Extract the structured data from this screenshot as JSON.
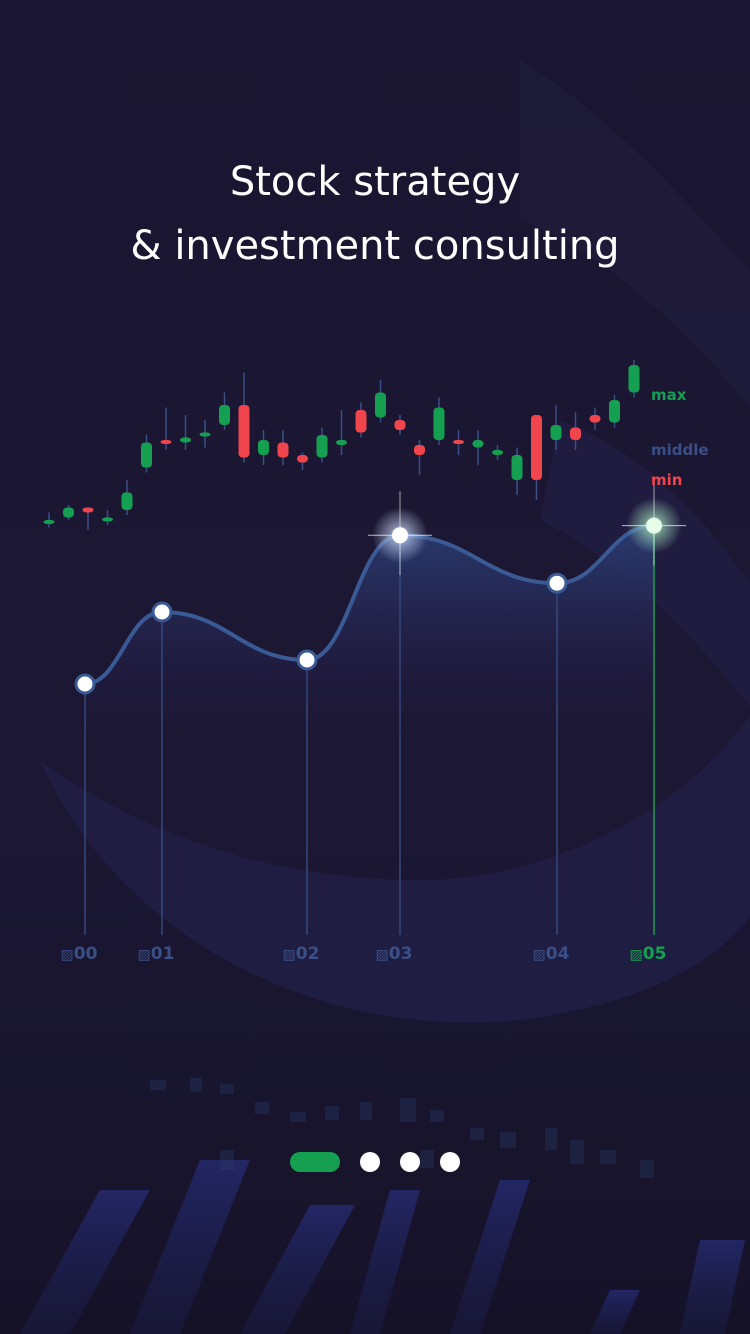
{
  "title": {
    "line1": "Stock strategy",
    "line2": "& investment consulting"
  },
  "colors": {
    "background": "#1b1630",
    "up": "#14a050",
    "down": "#f0454d",
    "line": "#3a5a96",
    "accent_green": "#14a050",
    "label_blue": "#3b4f87"
  },
  "legend": {
    "max": "max",
    "middle": "middle",
    "min": "min"
  },
  "chart_data": {
    "type": "line",
    "x": [
      "00",
      "01",
      "02",
      "03",
      "04",
      "05"
    ],
    "values": [
      2.0,
      3.5,
      2.5,
      5.1,
      4.1,
      5.3
    ],
    "highlighted": "05",
    "candlesticks": [
      {
        "dir": "flat",
        "o": 6.4,
        "c": 6.4,
        "h": 6.7,
        "l": 6.1
      },
      {
        "dir": "up",
        "o": 6.5,
        "c": 6.9,
        "h": 7.0,
        "l": 6.4
      },
      {
        "dir": "down",
        "o": 6.9,
        "c": 6.7,
        "h": 6.9,
        "l": 6.0
      },
      {
        "dir": "flat",
        "o": 6.5,
        "c": 6.5,
        "h": 6.8,
        "l": 6.2
      },
      {
        "dir": "up",
        "o": 6.8,
        "c": 7.5,
        "h": 8.0,
        "l": 6.6
      },
      {
        "dir": "up",
        "o": 8.5,
        "c": 9.5,
        "h": 9.8,
        "l": 8.3
      },
      {
        "dir": "down",
        "o": 9.6,
        "c": 9.5,
        "h": 10.9,
        "l": 9.2
      },
      {
        "dir": "up",
        "o": 9.5,
        "c": 9.7,
        "h": 10.6,
        "l": 9.2
      },
      {
        "dir": "up",
        "o": 9.8,
        "c": 9.9,
        "h": 10.4,
        "l": 9.3
      },
      {
        "dir": "up",
        "o": 10.2,
        "c": 11.0,
        "h": 11.5,
        "l": 10.0
      },
      {
        "dir": "down",
        "o": 11.0,
        "c": 8.9,
        "h": 12.3,
        "l": 8.7
      },
      {
        "dir": "up",
        "o": 9.0,
        "c": 9.6,
        "h": 10.0,
        "l": 8.6
      },
      {
        "dir": "down",
        "o": 9.5,
        "c": 8.9,
        "h": 10.0,
        "l": 8.6
      },
      {
        "dir": "down",
        "o": 9.0,
        "c": 8.7,
        "h": 9.1,
        "l": 8.4
      },
      {
        "dir": "up",
        "o": 8.9,
        "c": 9.8,
        "h": 10.1,
        "l": 8.7
      },
      {
        "dir": "up",
        "o": 9.4,
        "c": 9.6,
        "h": 10.8,
        "l": 9.0
      },
      {
        "dir": "down",
        "o": 10.8,
        "c": 9.9,
        "h": 11.1,
        "l": 9.7
      },
      {
        "dir": "up",
        "o": 10.5,
        "c": 11.5,
        "h": 12.0,
        "l": 10.3
      },
      {
        "dir": "down",
        "o": 10.4,
        "c": 10.0,
        "h": 10.6,
        "l": 9.8
      },
      {
        "dir": "down",
        "o": 9.4,
        "c": 9.0,
        "h": 9.6,
        "l": 8.2
      },
      {
        "dir": "up",
        "o": 9.6,
        "c": 10.9,
        "h": 11.3,
        "l": 9.4
      },
      {
        "dir": "down",
        "o": 9.6,
        "c": 9.5,
        "h": 10.0,
        "l": 9.0
      },
      {
        "dir": "up",
        "o": 9.3,
        "c": 9.6,
        "h": 10.0,
        "l": 8.6
      },
      {
        "dir": "up",
        "o": 9.0,
        "c": 9.2,
        "h": 9.4,
        "l": 8.8
      },
      {
        "dir": "up",
        "o": 8.0,
        "c": 9.0,
        "h": 9.3,
        "l": 7.4
      },
      {
        "dir": "down",
        "o": 10.6,
        "c": 8.0,
        "h": 10.6,
        "l": 7.2
      },
      {
        "dir": "up",
        "o": 9.6,
        "c": 10.2,
        "h": 11.0,
        "l": 9.2
      },
      {
        "dir": "down",
        "o": 10.1,
        "c": 9.6,
        "h": 10.7,
        "l": 9.2
      },
      {
        "dir": "down",
        "o": 10.6,
        "c": 10.3,
        "h": 10.9,
        "l": 10.0
      },
      {
        "dir": "up",
        "o": 10.3,
        "c": 11.2,
        "h": 11.4,
        "l": 10.1
      },
      {
        "dir": "up",
        "o": 11.5,
        "c": 12.6,
        "h": 12.8,
        "l": 11.3
      }
    ]
  },
  "pager": {
    "count": 4,
    "active": 0
  }
}
